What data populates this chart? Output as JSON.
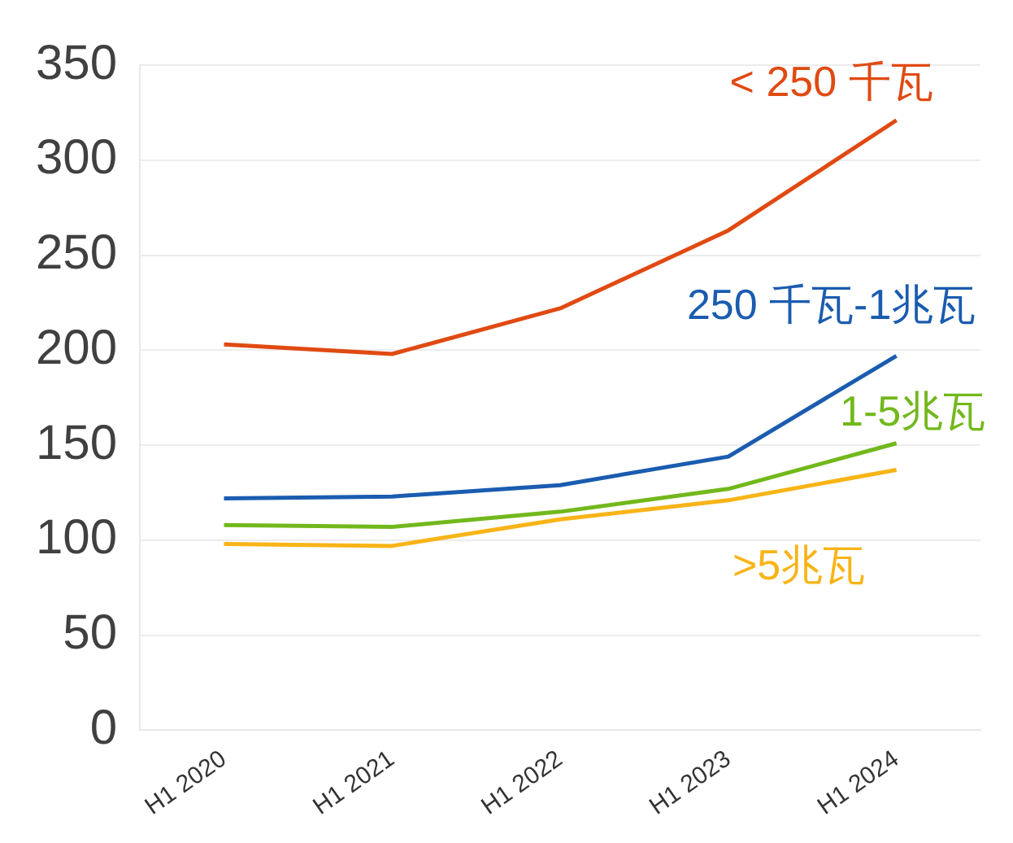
{
  "chart_data": {
    "type": "line",
    "categories": [
      "H1 2020",
      "H1 2021",
      "H1 2022",
      "H1 2023",
      "H1 2024"
    ],
    "series": [
      {
        "name": "< 250 千瓦",
        "color": "#e04a12",
        "values": [
          203,
          198,
          222,
          263,
          321
        ]
      },
      {
        "name": "250 千瓦-1兆瓦",
        "color": "#1a5cb0",
        "values": [
          122,
          123,
          129,
          144,
          197
        ]
      },
      {
        "name": "1-5兆瓦",
        "color": "#72b81c",
        "values": [
          108,
          107,
          115,
          127,
          151
        ]
      },
      {
        "name": ">5兆瓦",
        "color": "#f8b417",
        "values": [
          98,
          97,
          111,
          121,
          137
        ]
      }
    ],
    "ylim": [
      0,
      350
    ],
    "yticks": [
      0,
      50,
      100,
      150,
      200,
      250,
      300,
      350
    ],
    "grid": "y",
    "legend": false,
    "marker": "none",
    "line_style": "solid"
  }
}
